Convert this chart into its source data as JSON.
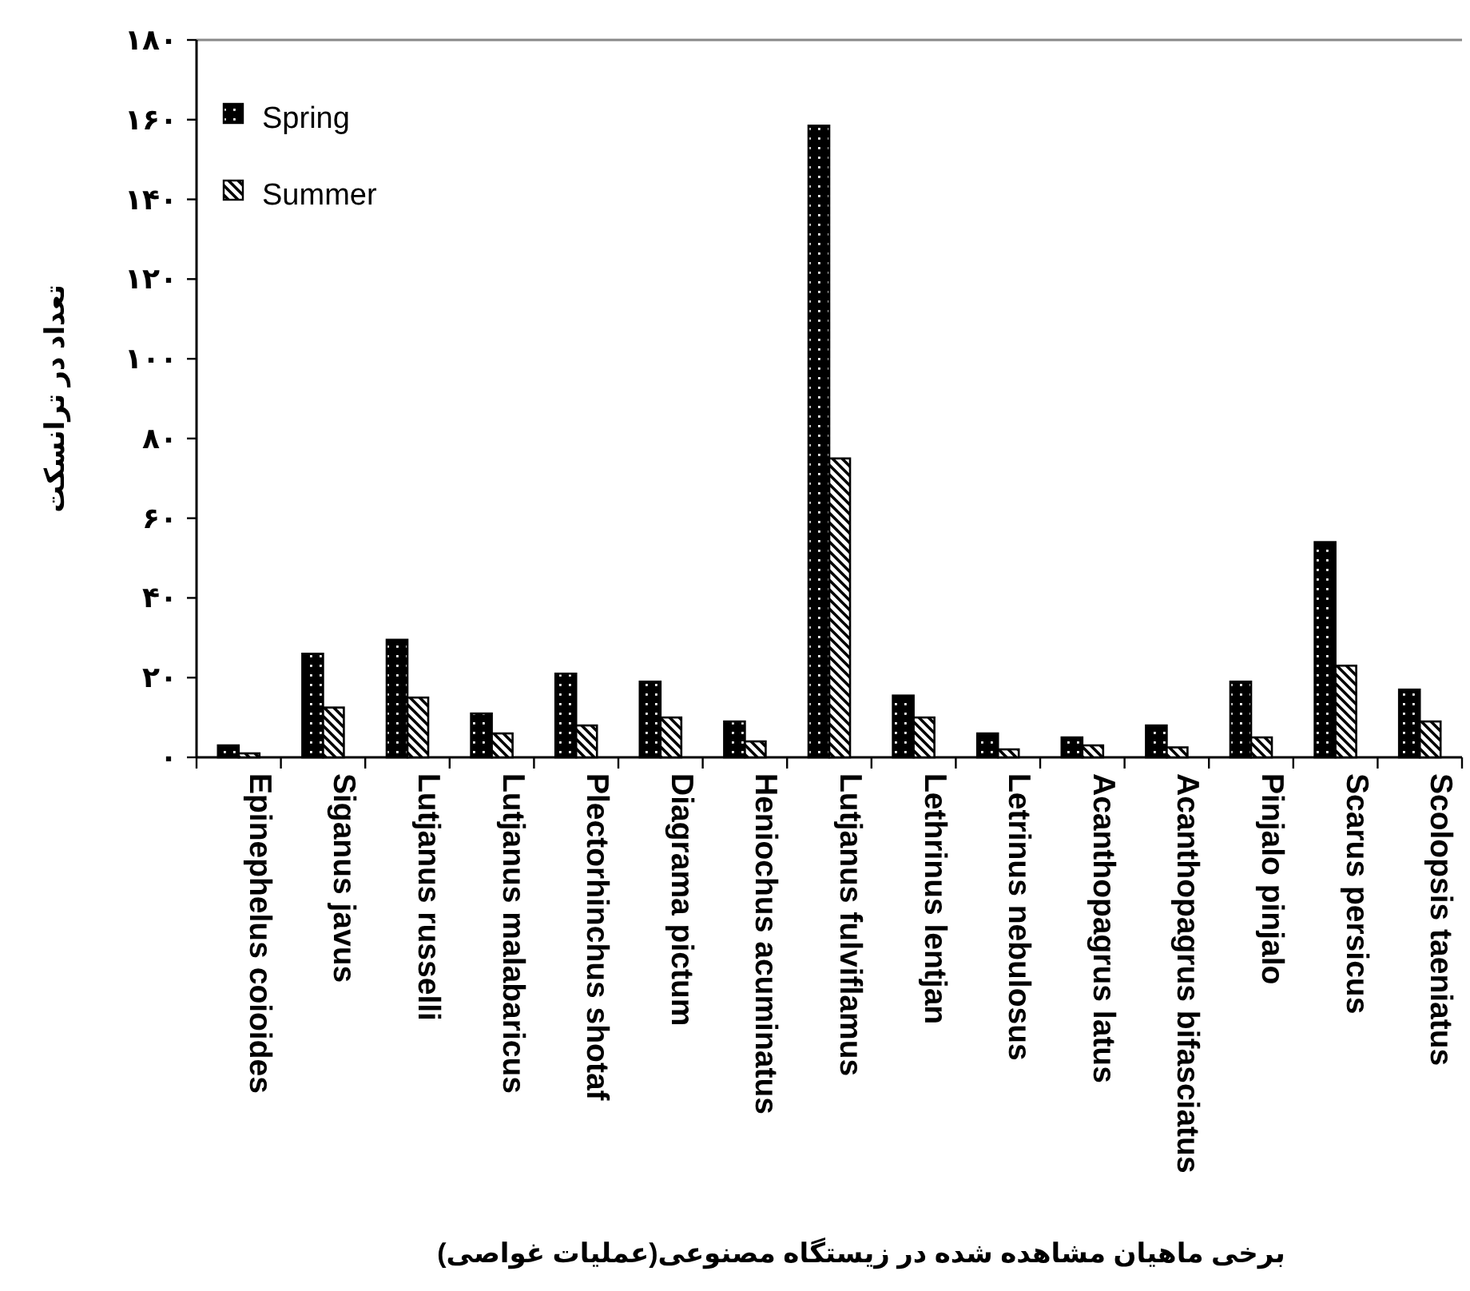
{
  "chart_data": {
    "type": "bar",
    "xlabel": "برخی ماهیان مشاهده شده در زیستگاه مصنوعی(عملیات غواصی)",
    "ylabel": "تعداد در ترانسکت",
    "categories": [
      "Epinephelus coioides",
      "Siganus javus",
      "Lutjanus russelli",
      "Lutjanus malabaricus",
      "Plectorhinchus shotaf",
      "Diagrama pictum",
      "Heniochus acuminatus",
      "Lutjanus fulviflamus",
      "Lethrinus lentjan",
      "Letrinus nebulosus",
      "Acanthopagrus latus",
      "Acanthopagrus bifasciatus",
      "Pinjalo pinjalo",
      "Scarus persicus",
      "Scolopsis taeniatus"
    ],
    "series": [
      {
        "name": "Spring",
        "color": "#000000",
        "values": [
          3,
          26,
          29.5,
          11,
          21,
          19,
          9,
          158.5,
          15.5,
          6,
          5,
          8,
          19,
          54,
          17
        ]
      },
      {
        "name": "Summer",
        "color": "#000000",
        "values": [
          1,
          12.5,
          15,
          6,
          8,
          10,
          4,
          75,
          10,
          2,
          3,
          2.5,
          5,
          23,
          9
        ]
      }
    ],
    "ylim": [
      0,
      180
    ],
    "yticks": [
      {
        "value": 0,
        "label": "۰"
      },
      {
        "value": 20,
        "label": "۲۰"
      },
      {
        "value": 40,
        "label": "۴۰"
      },
      {
        "value": 60,
        "label": "۶۰"
      },
      {
        "value": 80,
        "label": "۸۰"
      },
      {
        "value": 100,
        "label": "۱۰۰"
      },
      {
        "value": 120,
        "label": "۱۲۰"
      },
      {
        "value": 140,
        "label": "۱۴۰"
      },
      {
        "value": 160,
        "label": "۱۶۰"
      },
      {
        "value": 180,
        "label": "۱۸۰"
      }
    ],
    "legend": "top left",
    "grid": false
  }
}
